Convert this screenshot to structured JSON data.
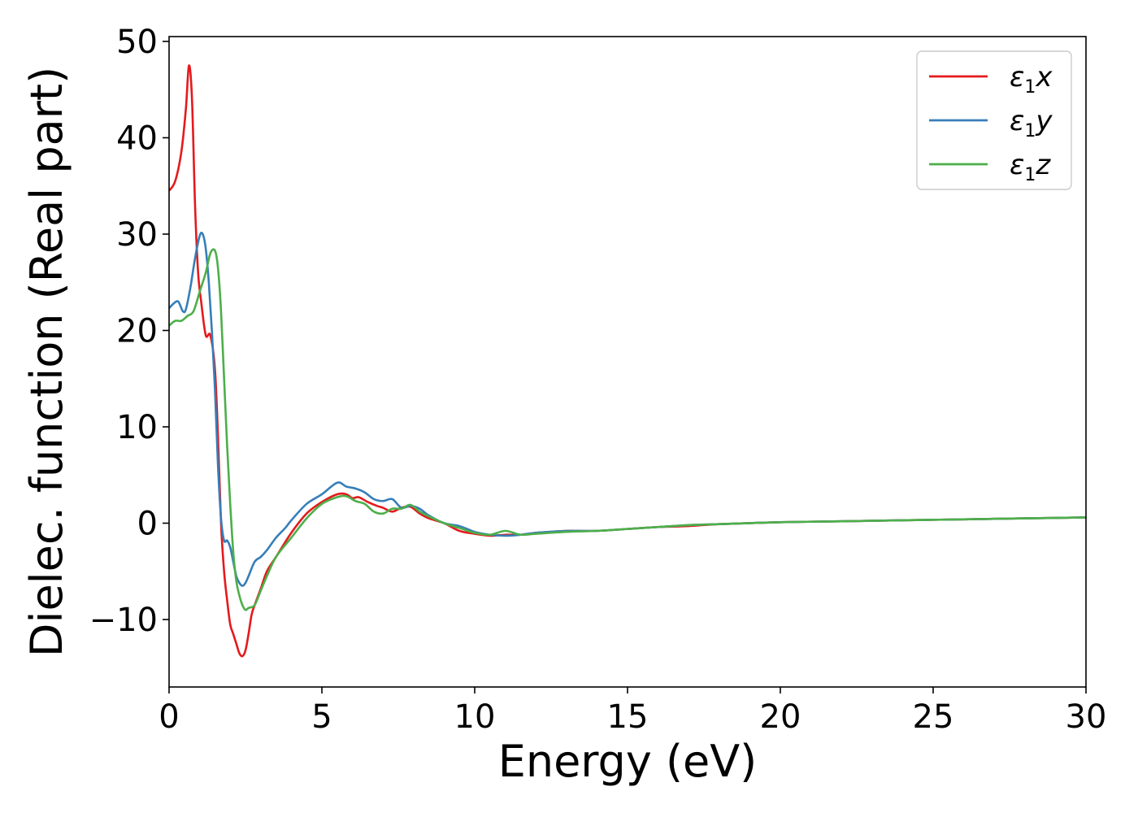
{
  "chart_data": {
    "type": "line",
    "xlabel": "Energy (eV)",
    "ylabel": "Dielec. function (Real part)",
    "xlim": [
      0,
      30
    ],
    "ylim": [
      -17,
      50.5
    ],
    "xticks": [
      0,
      5,
      10,
      15,
      20,
      25,
      30
    ],
    "yticks": [
      -10,
      0,
      10,
      20,
      30,
      40,
      50
    ],
    "xtick_labels": [
      "0",
      "5",
      "10",
      "15",
      "20",
      "25",
      "30"
    ],
    "ytick_labels": [
      "−10",
      "0",
      "10",
      "20",
      "30",
      "40",
      "50"
    ],
    "grid": false,
    "legend_position": "top-right",
    "series": [
      {
        "name": "ε1x",
        "symbol": "ε",
        "sub": "1",
        "axis": "x",
        "color": "#e41a1c",
        "x": [
          0,
          0.2,
          0.4,
          0.55,
          0.65,
          0.75,
          0.85,
          0.95,
          1.05,
          1.2,
          1.35,
          1.5,
          1.6,
          1.7,
          1.8,
          1.9,
          2.0,
          2.1,
          2.2,
          2.3,
          2.4,
          2.5,
          2.6,
          2.7,
          2.8,
          3.0,
          3.2,
          3.5,
          4.0,
          4.5,
          5.0,
          5.5,
          5.8,
          6.0,
          6.2,
          6.5,
          6.8,
          7.0,
          7.3,
          7.6,
          7.9,
          8.2,
          8.5,
          9.0,
          9.5,
          10.0,
          10.5,
          11.0,
          11.5,
          12.0,
          12.5,
          13.0,
          14.0,
          15.0,
          16.0,
          17.0,
          18.0,
          20.0,
          22.0,
          24.0,
          26.0,
          28.0,
          30.0
        ],
        "y": [
          34.5,
          35.5,
          38.5,
          43.0,
          47.5,
          44.0,
          33.0,
          26.0,
          23.0,
          19.5,
          19.5,
          16.0,
          9.0,
          0.0,
          -5.0,
          -8.0,
          -10.5,
          -11.5,
          -12.5,
          -13.5,
          -13.8,
          -13.2,
          -11.5,
          -9.5,
          -8.5,
          -6.8,
          -5.0,
          -3.5,
          -1.0,
          1.0,
          2.2,
          3.0,
          3.0,
          2.6,
          2.7,
          2.2,
          1.8,
          1.6,
          1.2,
          1.6,
          1.7,
          1.0,
          0.5,
          0.0,
          -0.8,
          -1.1,
          -1.3,
          -1.2,
          -1.2,
          -1.0,
          -0.9,
          -0.8,
          -0.8,
          -0.6,
          -0.4,
          -0.3,
          -0.1,
          0.1,
          0.2,
          0.3,
          0.4,
          0.5,
          0.6
        ]
      },
      {
        "name": "ε1y",
        "symbol": "ε",
        "sub": "1",
        "axis": "y",
        "color": "#377eb8",
        "x": [
          0,
          0.15,
          0.3,
          0.45,
          0.55,
          0.7,
          0.85,
          1.0,
          1.1,
          1.2,
          1.3,
          1.4,
          1.5,
          1.6,
          1.7,
          1.8,
          1.9,
          2.0,
          2.1,
          2.2,
          2.3,
          2.4,
          2.5,
          2.6,
          2.8,
          3.0,
          3.2,
          3.5,
          3.8,
          4.0,
          4.5,
          5.0,
          5.5,
          5.8,
          6.1,
          6.4,
          6.7,
          7.0,
          7.3,
          7.6,
          7.9,
          8.2,
          8.5,
          9.0,
          9.5,
          10.0,
          10.5,
          11.0,
          11.5,
          12.0,
          13.0,
          14.0,
          15.0,
          16.0,
          17.0,
          18.0,
          20.0,
          22.0,
          24.0,
          26.0,
          28.0,
          30.0
        ],
        "y": [
          22.3,
          22.8,
          23.0,
          22.0,
          22.2,
          24.5,
          27.5,
          29.8,
          30.0,
          28.5,
          25.0,
          20.0,
          14.0,
          6.0,
          0.5,
          -1.8,
          -1.8,
          -2.5,
          -4.0,
          -5.5,
          -6.2,
          -6.5,
          -6.2,
          -5.5,
          -4.0,
          -3.5,
          -2.8,
          -1.5,
          -0.5,
          0.3,
          2.0,
          3.0,
          4.2,
          3.8,
          3.6,
          3.2,
          2.5,
          2.3,
          2.5,
          1.6,
          1.8,
          1.5,
          0.8,
          0.0,
          -0.3,
          -0.9,
          -1.2,
          -1.3,
          -1.2,
          -1.0,
          -0.8,
          -0.8,
          -0.6,
          -0.4,
          -0.2,
          -0.1,
          0.1,
          0.2,
          0.3,
          0.4,
          0.5,
          0.6
        ]
      },
      {
        "name": "ε1z",
        "symbol": "ε",
        "sub": "1",
        "axis": "z",
        "color": "#4daf4a",
        "x": [
          0,
          0.2,
          0.4,
          0.6,
          0.8,
          1.0,
          1.2,
          1.35,
          1.5,
          1.6,
          1.7,
          1.8,
          1.9,
          2.0,
          2.1,
          2.2,
          2.3,
          2.4,
          2.5,
          2.6,
          2.8,
          3.0,
          3.2,
          3.5,
          4.0,
          4.5,
          5.0,
          5.5,
          5.8,
          6.1,
          6.4,
          6.7,
          7.0,
          7.3,
          7.6,
          7.9,
          8.2,
          8.5,
          9.0,
          9.5,
          10.0,
          10.5,
          11.0,
          11.5,
          12.0,
          13.0,
          14.0,
          15.0,
          16.0,
          17.0,
          18.0,
          20.0,
          22.0,
          24.0,
          26.0,
          28.0,
          30.0
        ],
        "y": [
          20.5,
          21.0,
          21.0,
          21.5,
          22.0,
          24.0,
          26.0,
          28.0,
          28.3,
          26.5,
          22.0,
          15.0,
          8.0,
          2.0,
          -3.0,
          -6.0,
          -7.5,
          -8.5,
          -9.0,
          -8.8,
          -8.5,
          -7.0,
          -5.5,
          -3.5,
          -1.5,
          0.5,
          2.0,
          2.7,
          2.8,
          2.3,
          2.0,
          1.2,
          1.0,
          1.5,
          1.5,
          1.9,
          1.2,
          0.7,
          0.0,
          -0.5,
          -1.0,
          -1.2,
          -0.8,
          -1.2,
          -1.1,
          -0.9,
          -0.8,
          -0.6,
          -0.4,
          -0.2,
          -0.1,
          0.1,
          0.2,
          0.3,
          0.4,
          0.5,
          0.6
        ]
      }
    ]
  }
}
